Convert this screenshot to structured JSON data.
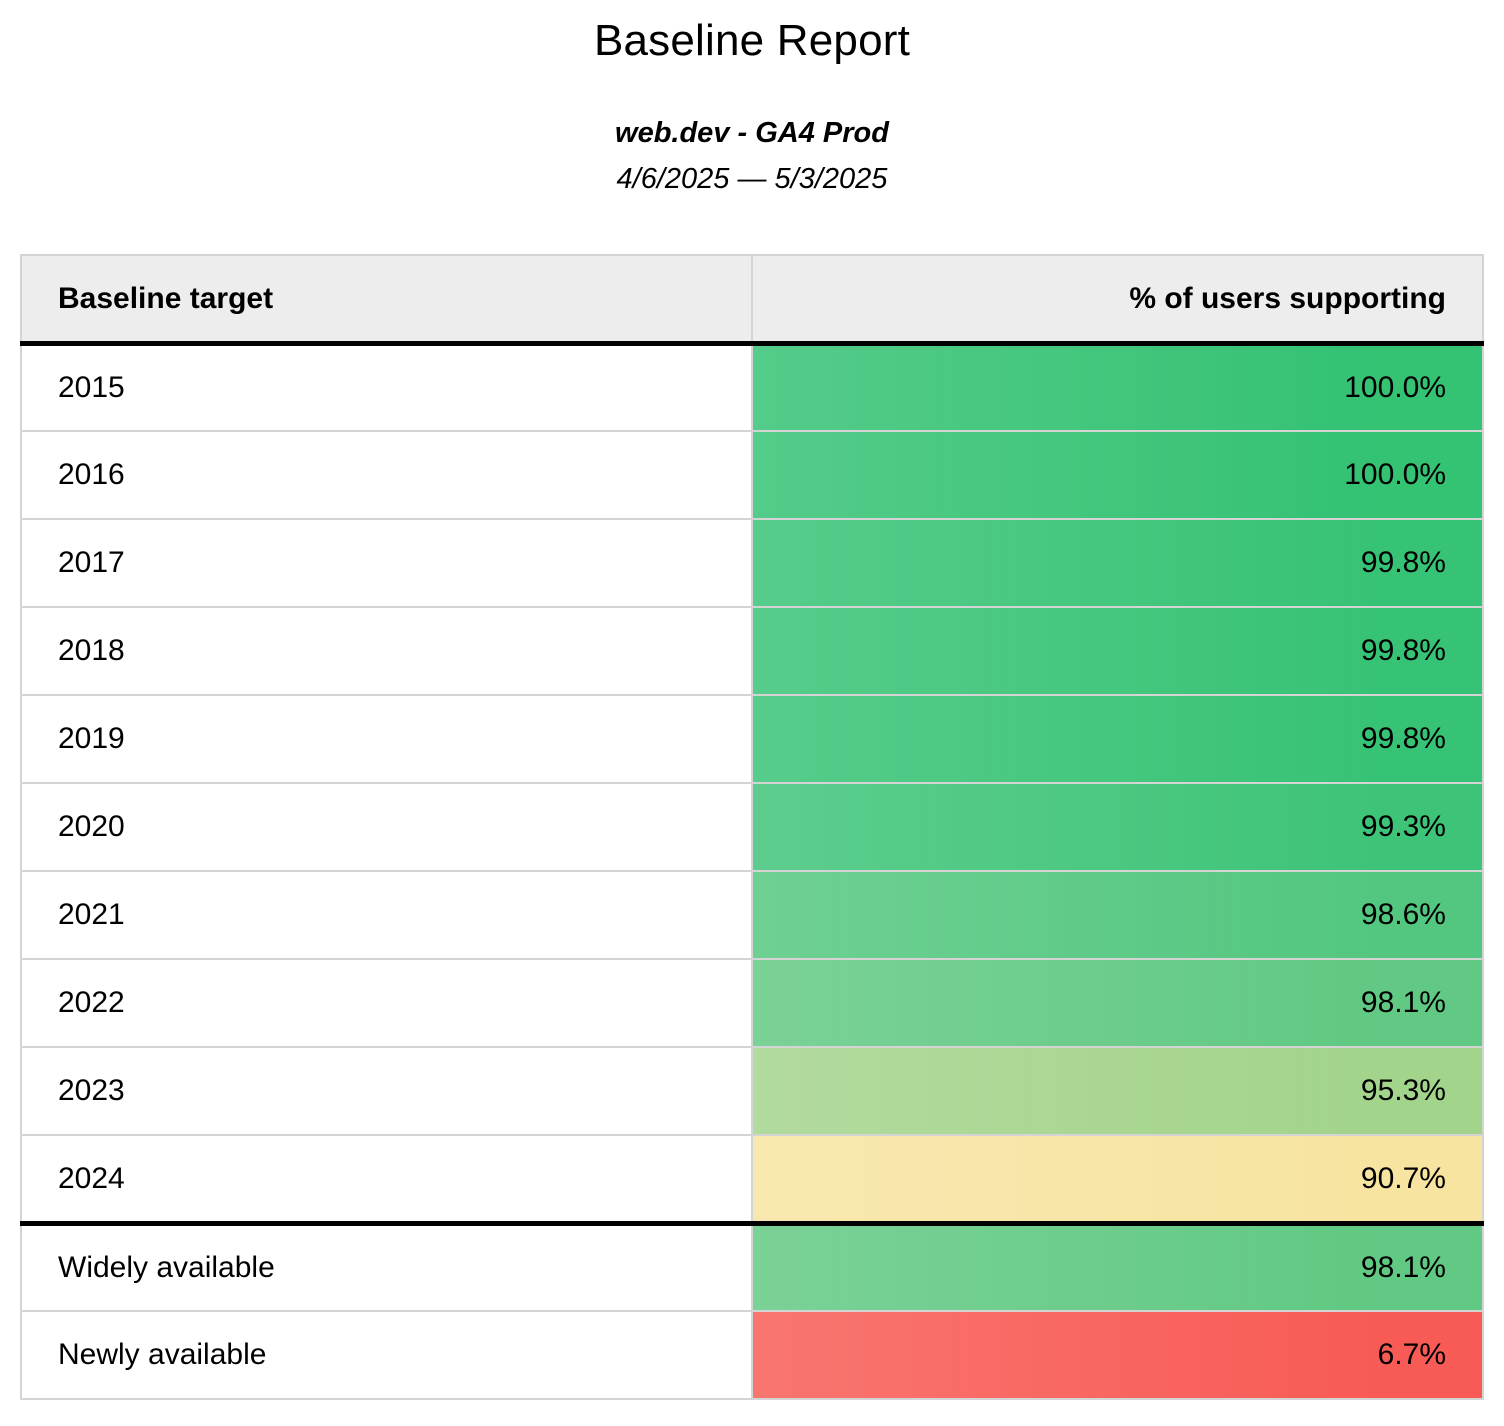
{
  "header": {
    "title": "Baseline Report",
    "subtitle": "web.dev - GA4 Prod",
    "date_range": "4/6/2025 — 5/3/2025"
  },
  "table": {
    "columns": {
      "target": "Baseline target",
      "support": "% of users supporting"
    },
    "rows": [
      {
        "label": "2015",
        "value": "100.0%",
        "color": "#34c273",
        "section_end": false
      },
      {
        "label": "2016",
        "value": "100.0%",
        "color": "#34c273",
        "section_end": false
      },
      {
        "label": "2017",
        "value": "99.8%",
        "color": "#37c375",
        "section_end": false
      },
      {
        "label": "2018",
        "value": "99.8%",
        "color": "#37c375",
        "section_end": false
      },
      {
        "label": "2019",
        "value": "99.8%",
        "color": "#37c375",
        "section_end": false
      },
      {
        "label": "2020",
        "value": "99.3%",
        "color": "#3ec478",
        "section_end": false
      },
      {
        "label": "2021",
        "value": "98.6%",
        "color": "#53c77f",
        "section_end": false
      },
      {
        "label": "2022",
        "value": "98.1%",
        "color": "#61c983",
        "section_end": false
      },
      {
        "label": "2023",
        "value": "95.3%",
        "color": "#a3d48b",
        "section_end": false
      },
      {
        "label": "2024",
        "value": "90.7%",
        "color": "#f7e4a1",
        "section_end": true
      },
      {
        "label": "Widely available",
        "value": "98.1%",
        "color": "#61c983",
        "section_end": false
      },
      {
        "label": "Newly available",
        "value": "6.7%",
        "color": "#f85b55",
        "section_end": false
      }
    ]
  },
  "colors": {
    "header_bg": "#ededed",
    "grid_border": "#d4d4d4",
    "section_divider": "#000000",
    "text": "#000000"
  },
  "chart_data": {
    "type": "table",
    "title": "Baseline Report",
    "subtitle": "web.dev - GA4 Prod",
    "date_range": "4/6/2025 — 5/3/2025",
    "columns": [
      "Baseline target",
      "% of users supporting"
    ],
    "categories": [
      "2015",
      "2016",
      "2017",
      "2018",
      "2019",
      "2020",
      "2021",
      "2022",
      "2023",
      "2024",
      "Widely available",
      "Newly available"
    ],
    "values": [
      100.0,
      100.0,
      99.8,
      99.8,
      99.8,
      99.3,
      98.6,
      98.1,
      95.3,
      90.7,
      98.1,
      6.7
    ],
    "value_unit": "%",
    "layout": "value cells color-coded green (high) through yellow to red (low)"
  }
}
